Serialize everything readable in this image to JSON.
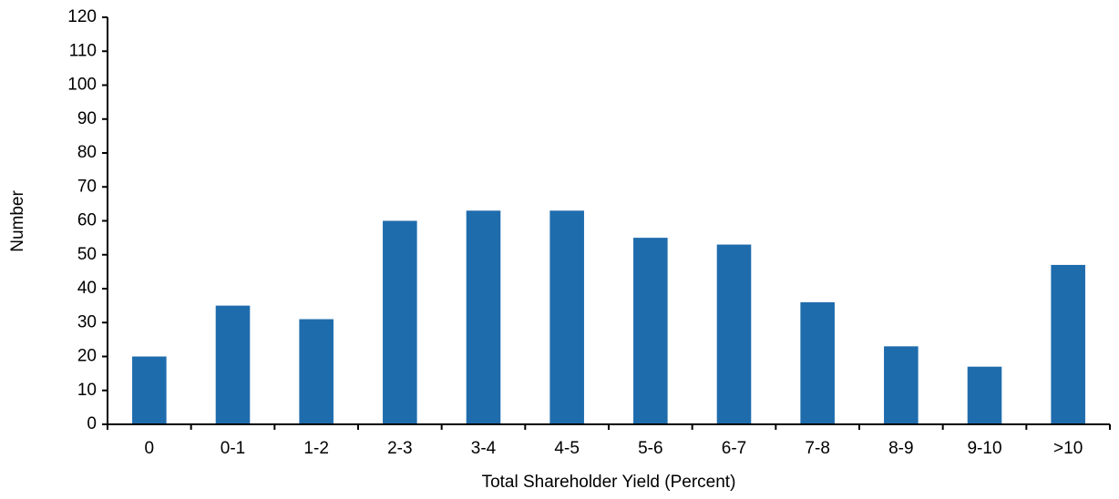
{
  "chart_data": {
    "type": "bar",
    "x_label": "Total Shareholder Yield (Percent)",
    "y_label": "Number",
    "categories": [
      "0",
      "0-1",
      "1-2",
      "2-3",
      "3-4",
      "4-5",
      "5-6",
      "6-7",
      "7-8",
      "8-9",
      "9-10",
      ">10"
    ],
    "values": [
      20,
      35,
      31,
      60,
      63,
      63,
      55,
      53,
      36,
      23,
      17,
      47
    ],
    "color": "#1f6cad",
    "ylim": [
      0,
      120
    ],
    "yticks": [
      0,
      10,
      20,
      30,
      40,
      50,
      60,
      70,
      80,
      90,
      100,
      110,
      120
    ],
    "grid": false
  }
}
